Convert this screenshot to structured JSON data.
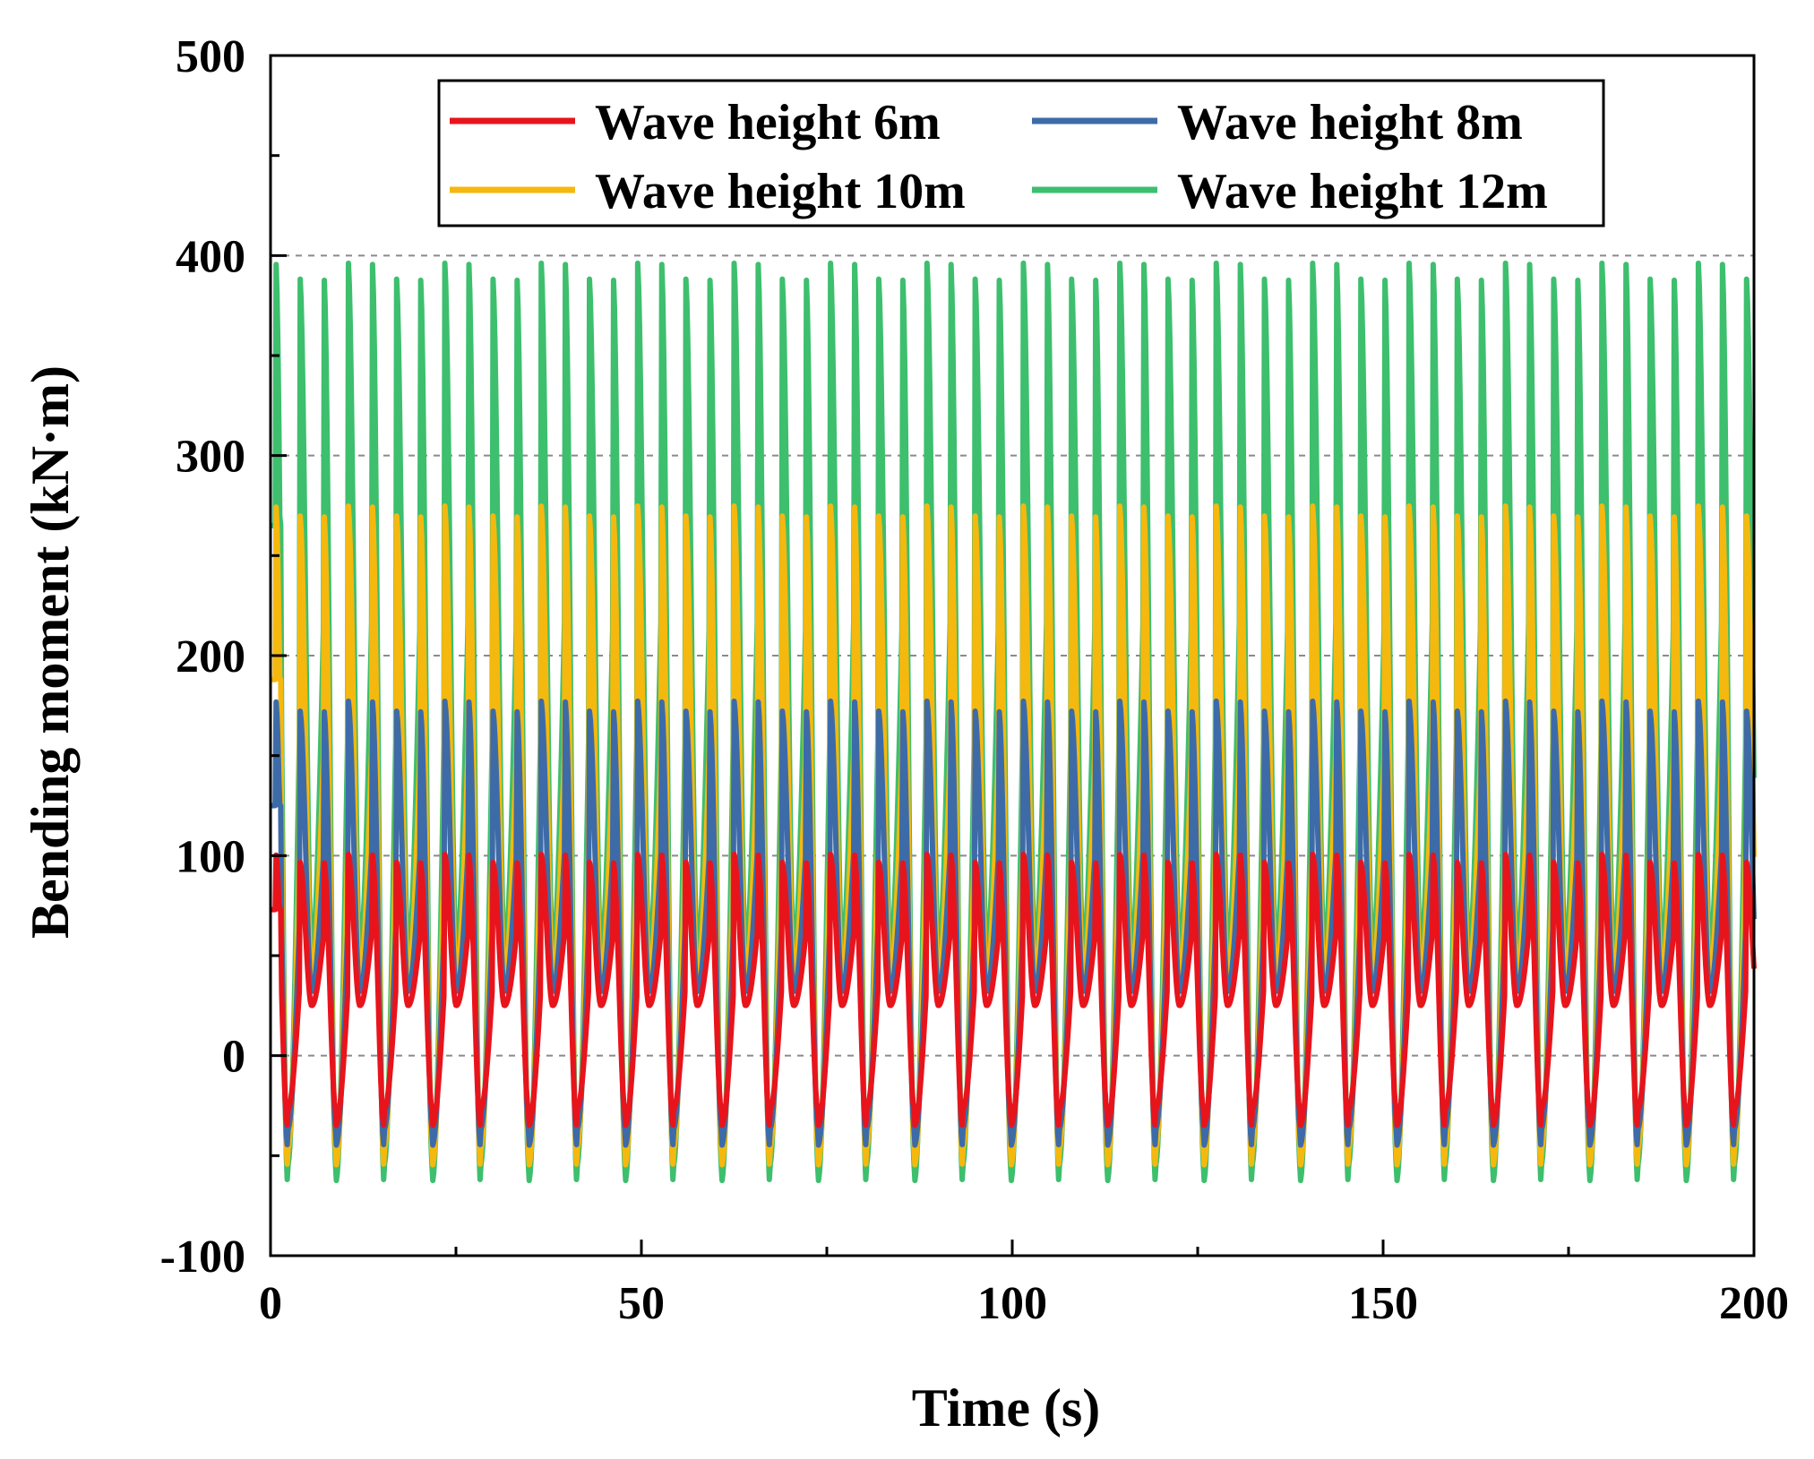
{
  "chart_data": {
    "type": "line",
    "xlabel": "Time (s)",
    "ylabel": "Bending moment (kN·m)",
    "xlim": [
      0,
      200
    ],
    "ylim": [
      -100,
      500
    ],
    "xticks": [
      0,
      50,
      100,
      150,
      200
    ],
    "yticks": [
      -100,
      0,
      100,
      200,
      300,
      400,
      500
    ],
    "grid": {
      "horizontal_dashed": [
        0,
        100,
        200,
        300,
        400
      ]
    },
    "legend_position": "top",
    "period_s": 6.5,
    "series": [
      {
        "name": "Wave height 6m",
        "color": "#e8141c",
        "min_trough": -35,
        "shallow_trough": 25,
        "peak_high": 101,
        "peak_low": 97
      },
      {
        "name": "Wave height 8m",
        "color": "#3d6ba8",
        "min_trough": -45,
        "shallow_trough": 32,
        "peak_high": 178,
        "peak_low": 173
      },
      {
        "name": "Wave height 10m",
        "color": "#f5b80f",
        "min_trough": -55,
        "shallow_trough": 40,
        "peak_high": 276,
        "peak_low": 271
      },
      {
        "name": "Wave height 12m",
        "color": "#3dbf6e",
        "min_trough": -63,
        "shallow_trough": 52,
        "peak_high": 398,
        "peak_low": 390
      }
    ]
  }
}
